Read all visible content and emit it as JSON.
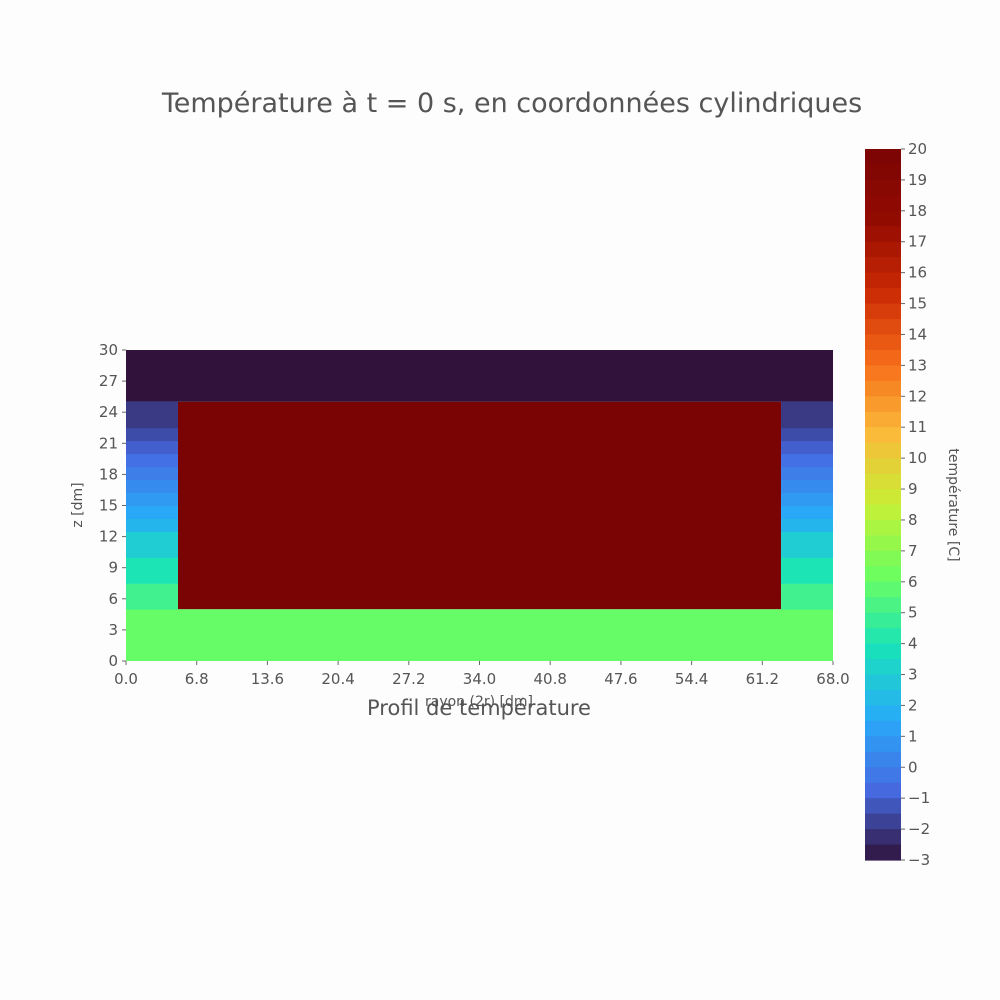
{
  "chart_data": {
    "type": "heatmap",
    "title": "Température à t = 0 s, en coordonnées cylindriques",
    "subtitle": "Profil de température",
    "xlabel": "rayon (2r) [dm]",
    "ylabel": "z [dm]",
    "colorbar_label": "température [C]",
    "xlim": [
      0,
      68
    ],
    "ylim": [
      0,
      30
    ],
    "x_ticks": [
      "0.0",
      "6.8",
      "13.6",
      "20.4",
      "27.2",
      "34.0",
      "40.8",
      "47.6",
      "54.4",
      "61.2",
      "68.0"
    ],
    "y_ticks": [
      "0",
      "3",
      "6",
      "9",
      "12",
      "15",
      "18",
      "21",
      "24",
      "27",
      "30"
    ],
    "colorbar_range": [
      -3,
      20
    ],
    "colorbar_ticks": [
      "20",
      "19",
      "18",
      "17",
      "16",
      "15",
      "14",
      "13",
      "12",
      "11",
      "10",
      "9",
      "8",
      "7",
      "6",
      "5",
      "4",
      "3",
      "2",
      "1",
      "0",
      "−1",
      "−2",
      "−3"
    ],
    "colormap": "turbo",
    "regions": [
      {
        "name": "top",
        "x": [
          0,
          68
        ],
        "z": [
          25,
          30
        ],
        "value": -3
      },
      {
        "name": "bottom",
        "x": [
          0,
          68
        ],
        "z": [
          0,
          5
        ],
        "value": 6
      },
      {
        "name": "interior",
        "x": [
          5,
          63
        ],
        "z": [
          5,
          25
        ],
        "value": 20
      },
      {
        "name": "left-wall",
        "x": [
          0,
          5
        ],
        "z": [
          5,
          25
        ],
        "profile_bottom_to_top": [
          5,
          5,
          4,
          4,
          3,
          3,
          2,
          1.5,
          1,
          0.5,
          0,
          -0.5,
          -1,
          -1.5,
          -2,
          -2
        ]
      },
      {
        "name": "right-wall",
        "x": [
          63,
          68
        ],
        "z": [
          5,
          25
        ],
        "profile_bottom_to_top": [
          5,
          5,
          4,
          4,
          3,
          3,
          2,
          1.5,
          1,
          0.5,
          0,
          -0.5,
          -1,
          -1.5,
          -2,
          -2
        ]
      }
    ]
  }
}
